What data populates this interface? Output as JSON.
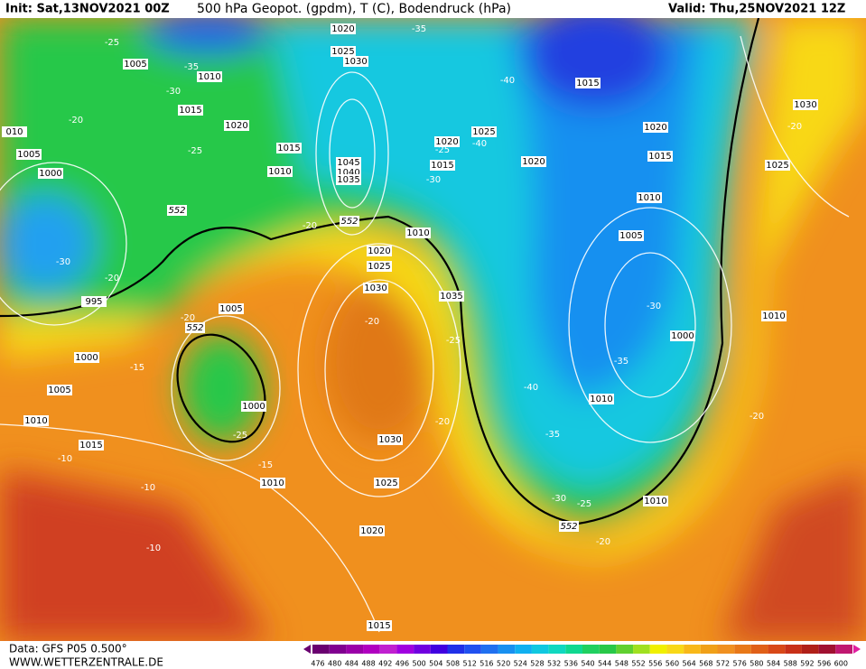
{
  "header": {
    "init": "Init: Sat,13NOV2021 00Z",
    "title": "500 hPa Geopot. (gpdm), T (C), Bodendruck (hPa)",
    "valid": "Valid: Thu,25NOV2021 12Z"
  },
  "map": {
    "pressure_labels": [
      "1020",
      "1025",
      "1030",
      "1005",
      "1010",
      "1015",
      "1020",
      "1015",
      "1010",
      "1045",
      "1040",
      "1035",
      "1020",
      "1025",
      "1015",
      "1015",
      "1020",
      "1020",
      "1015",
      "1010",
      "1005",
      "1030",
      "1025",
      "1010",
      "1020",
      "1025",
      "1030",
      "1035",
      "1005",
      "1000",
      "995",
      "1000",
      "1005",
      "1010",
      "1015",
      "1005",
      "1000",
      "1010",
      "1030",
      "1025",
      "1020",
      "1015",
      "1000",
      "1010",
      "1010",
      "1010",
      "010"
    ],
    "temperature_labels": [
      "-25",
      "-35",
      "-30",
      "-20",
      "-25",
      "-35",
      "-40",
      "-40",
      "-25",
      "-30",
      "-20",
      "-30",
      "-20",
      "-20",
      "-15",
      "-25",
      "-15",
      "-10",
      "-10",
      "-10",
      "-20",
      "-25",
      "-20",
      "-40",
      "-35",
      "-35",
      "-30",
      "-30",
      "-25",
      "-20",
      "-20",
      "-20"
    ],
    "height_labels": [
      "552",
      "552",
      "552",
      "552"
    ]
  },
  "footer": {
    "data": "Data: GFS P05 0.500°",
    "site": "WWW.WETTERZENTRALE.DE",
    "scale": [
      "476",
      "480",
      "484",
      "488",
      "492",
      "496",
      "500",
      "504",
      "508",
      "512",
      "516",
      "520",
      "524",
      "528",
      "532",
      "536",
      "540",
      "544",
      "548",
      "552",
      "556",
      "560",
      "564",
      "568",
      "572",
      "576",
      "580",
      "584",
      "588",
      "592",
      "596",
      "600"
    ]
  }
}
